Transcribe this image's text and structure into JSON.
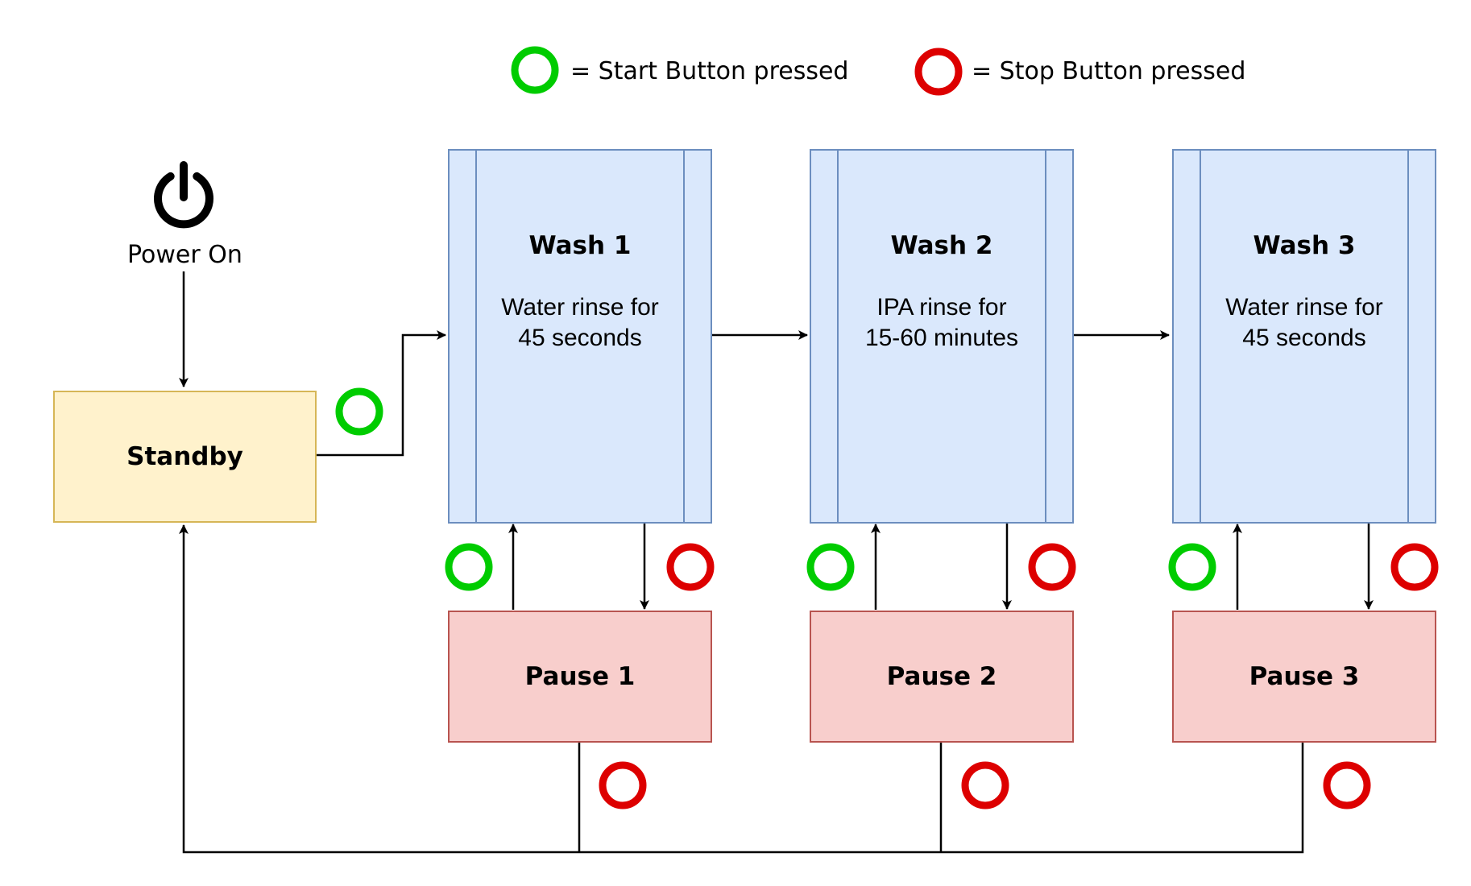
{
  "legend": {
    "start": {
      "text": "= Start Button pressed",
      "color": "#00cc00"
    },
    "stop": {
      "text": "= Stop Button pressed",
      "color": "#dd0000"
    }
  },
  "power": {
    "label": "Power On",
    "icon": "power-icon"
  },
  "standby": {
    "title": "Standby"
  },
  "washes": [
    {
      "title": "Wash 1",
      "desc1": "Water rinse for",
      "desc2": "45 seconds"
    },
    {
      "title": "Wash 2",
      "desc1": "IPA rinse for",
      "desc2": "15-60 minutes"
    },
    {
      "title": "Wash 3",
      "desc1": "Water rinse for",
      "desc2": "45 seconds"
    }
  ],
  "pauses": [
    {
      "title": "Pause 1"
    },
    {
      "title": "Pause 2"
    },
    {
      "title": "Pause 3"
    }
  ],
  "colors": {
    "standby_fill": "#fff2cc",
    "standby_stroke": "#d6b656",
    "wash_fill": "#dae8fc",
    "wash_stroke": "#6c8ebf",
    "pause_fill": "#f8cecc",
    "pause_stroke": "#b85450"
  }
}
